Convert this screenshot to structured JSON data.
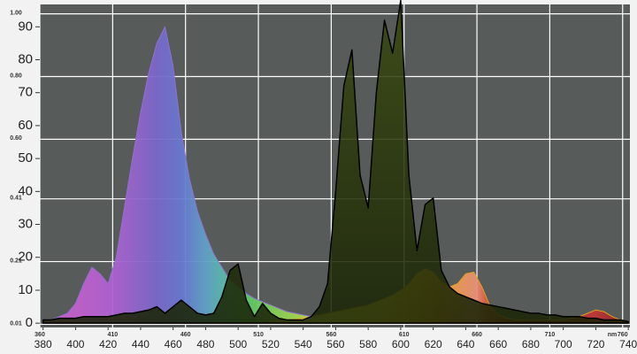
{
  "chart_data": {
    "type": "area",
    "x": [
      380,
      385,
      390,
      395,
      400,
      405,
      410,
      415,
      420,
      425,
      430,
      435,
      440,
      445,
      450,
      455,
      460,
      465,
      470,
      475,
      480,
      485,
      490,
      495,
      500,
      505,
      510,
      515,
      520,
      525,
      530,
      535,
      540,
      545,
      550,
      555,
      560,
      565,
      570,
      575,
      580,
      585,
      590,
      595,
      600,
      605,
      610,
      615,
      620,
      625,
      630,
      635,
      640,
      645,
      650,
      655,
      660,
      665,
      670,
      675,
      680,
      685,
      690,
      695,
      700,
      705,
      710,
      715,
      720,
      725,
      730,
      735,
      740
    ],
    "xlim": [
      378,
      741
    ],
    "xticks": [
      380,
      400,
      420,
      440,
      460,
      480,
      500,
      520,
      540,
      560,
      580,
      600,
      620,
      640,
      660,
      680,
      700,
      720,
      740
    ],
    "ylim": [
      -1.3,
      96.8
    ],
    "yticks": [
      0,
      10,
      20,
      30,
      40,
      50,
      60,
      70,
      80,
      90
    ],
    "x2lim": [
      360,
      765
    ],
    "x2ticks": [
      360,
      410,
      460,
      510,
      560,
      610,
      660,
      710,
      760
    ],
    "x2_unit": "nm",
    "y2lim": [
      0,
      1.03
    ],
    "y2ticks": [
      {
        "value": 1,
        "label": "1.00"
      },
      {
        "value": 0.8,
        "label": "0.80"
      },
      {
        "value": 0.6,
        "label": "0.60"
      },
      0.41,
      0.21,
      0.01
    ],
    "grid": true,
    "series": [
      {
        "color": "#9070d0",
        "values": [
          0.5,
          1,
          2,
          3,
          6,
          12,
          17,
          15,
          12,
          20,
          35,
          50,
          64,
          76,
          85,
          90,
          78,
          58,
          44,
          34,
          27,
          21,
          17,
          13,
          11,
          9,
          7.5,
          6.5,
          5.5,
          4.5,
          3.5,
          3,
          2.5,
          2,
          1.5,
          1.2,
          1,
          0.8,
          0.6,
          0.5,
          0.4,
          0.3,
          0.2,
          0.1,
          0,
          0,
          0,
          0,
          0,
          0,
          0,
          0,
          0,
          0,
          0,
          0,
          0,
          0,
          0,
          0,
          0,
          0,
          0,
          0,
          0,
          0,
          0,
          0,
          0,
          0,
          0,
          0,
          0
        ]
      },
      {
        "color": "#e0a020",
        "values": [
          0,
          0,
          0,
          0,
          0,
          0,
          0,
          0,
          0,
          0,
          0,
          0,
          0,
          0,
          0,
          0,
          0,
          0,
          0,
          0,
          0,
          0,
          0,
          0,
          0,
          0,
          0,
          0,
          0.5,
          0.8,
          1,
          1.2,
          1.5,
          2,
          2.5,
          3,
          3.5,
          4,
          4.5,
          5,
          5.5,
          6.5,
          7.5,
          8.5,
          10,
          12,
          15,
          16.5,
          15.5,
          12.5,
          11,
          12,
          15,
          15.5,
          11,
          5,
          2.5,
          1.5,
          1,
          1,
          1,
          1,
          1,
          1,
          1,
          1.5,
          2,
          3,
          4,
          3.5,
          2,
          1,
          0.5
        ]
      },
      {
        "color": "#000000",
        "values": [
          1,
          1,
          1.5,
          1.5,
          1.5,
          2,
          2,
          2,
          2,
          2.5,
          3,
          3,
          3.5,
          4,
          5,
          3,
          5,
          7,
          5,
          3,
          2.5,
          3,
          8,
          16,
          18,
          7,
          2,
          6,
          3,
          1.5,
          1,
          1,
          1,
          2,
          5,
          12,
          40,
          72,
          83,
          45,
          35,
          70,
          92,
          82,
          98,
          45,
          22,
          36,
          38,
          16,
          11,
          9,
          8,
          7,
          6,
          5.5,
          5,
          4.5,
          4,
          3.5,
          3,
          3,
          2.5,
          2.5,
          2,
          2,
          2,
          1.5,
          1.5,
          1,
          1,
          1,
          0.5
        ]
      }
    ]
  }
}
